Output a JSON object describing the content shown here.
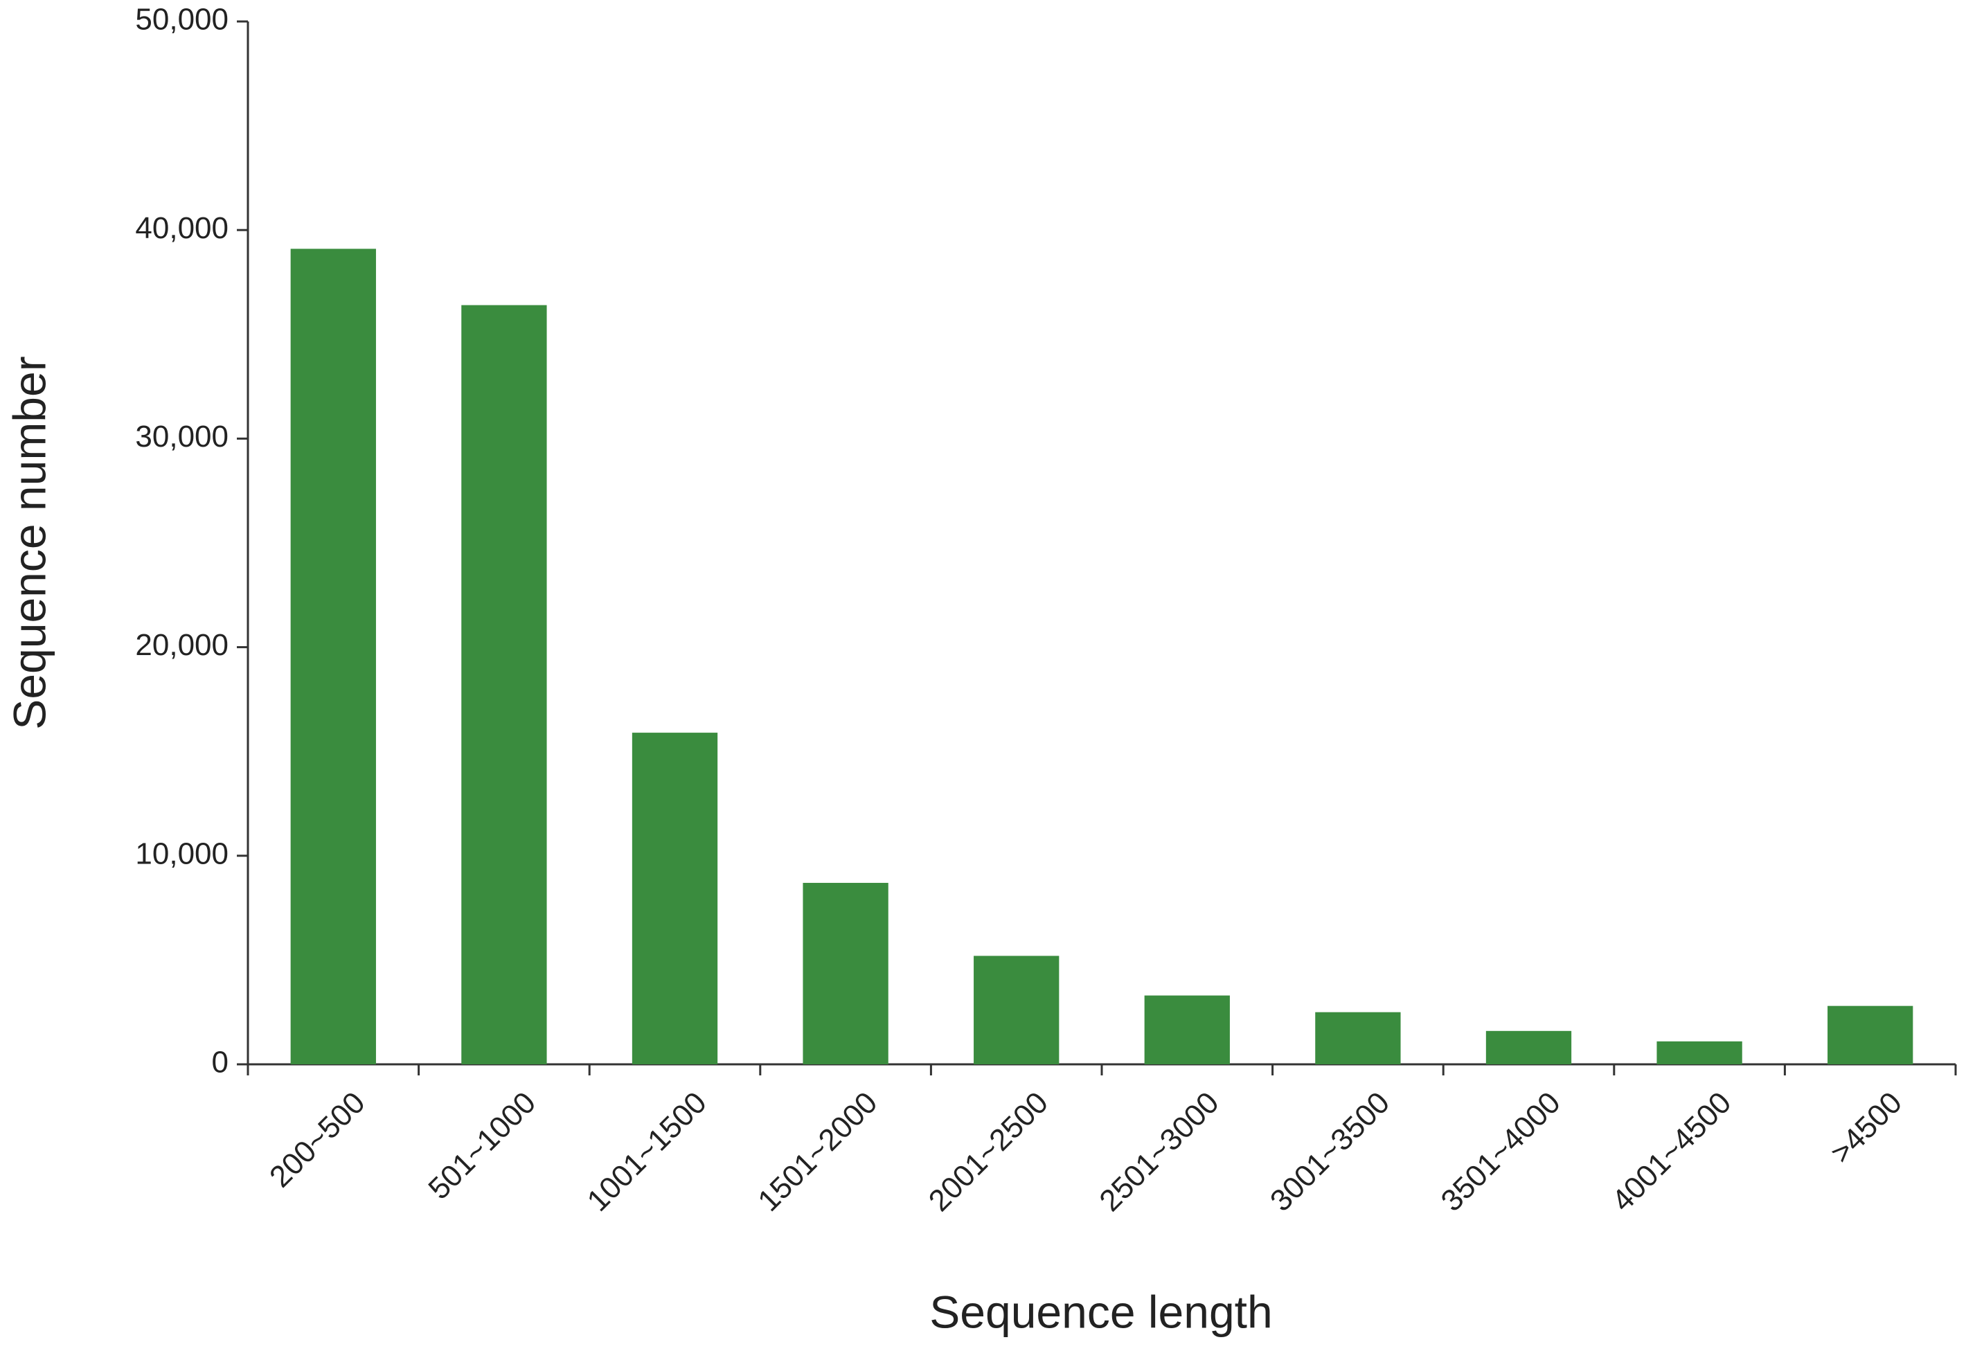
{
  "chart_data": {
    "type": "bar",
    "x_label": "Sequence length",
    "y_label": "Sequence number",
    "categories": [
      "200~500",
      "501~1000",
      "1001~1500",
      "1501~2000",
      "2001~2500",
      "2501~3000",
      "3001~3500",
      "3501~4000",
      "4001~4500",
      ">4500"
    ],
    "values": [
      39100,
      36400,
      15900,
      8700,
      5200,
      3300,
      2500,
      1600,
      1100,
      2800
    ],
    "color": "#3a8c3e",
    "ylim": [
      0,
      50000
    ],
    "yticks": [
      0,
      {
        "value": 10000,
        "label": "10,000"
      },
      {
        "value": 20000,
        "label": "20,000"
      },
      {
        "value": 30000,
        "label": "30,000"
      },
      {
        "value": 40000,
        "label": "40,000"
      },
      {
        "value": 50000,
        "label": "50,000"
      }
    ],
    "grid": false
  }
}
